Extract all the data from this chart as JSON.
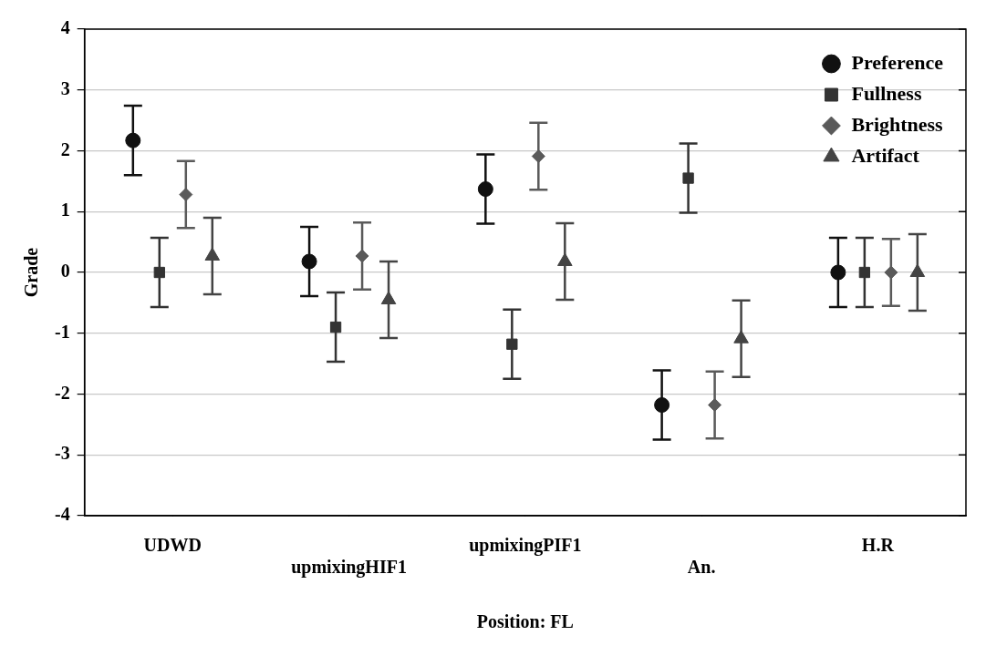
{
  "chart_data": {
    "type": "scatter",
    "xlabel": "Position: FL",
    "ylabel": "Grade",
    "categories": [
      "UDWD",
      "upmixingHIF1",
      "upmixingPIF1",
      "An.",
      "H.R"
    ],
    "ylim": [
      -4,
      4
    ],
    "yticks": [
      -4,
      -3,
      -2,
      -1,
      0,
      1,
      2,
      3,
      4
    ],
    "grid": "y",
    "legend": "top right",
    "series": [
      {
        "name": "Preference",
        "color": "#111111",
        "marker": "circle",
        "values": [
          2.17,
          0.18,
          1.37,
          -2.18,
          0
        ],
        "errors": [
          0.57,
          0.57,
          0.57,
          0.57,
          0.57
        ]
      },
      {
        "name": "Fullness",
        "color": "#333333",
        "marker": "square",
        "values": [
          0,
          -0.9,
          -1.18,
          1.55,
          0
        ],
        "errors": [
          0.57,
          0.57,
          0.57,
          0.57,
          0.57
        ]
      },
      {
        "name": "Brightness",
        "color": "#5a5a5a",
        "marker": "diamond",
        "values": [
          1.28,
          0.27,
          1.91,
          -2.18,
          0
        ],
        "errors": [
          0.55,
          0.55,
          0.55,
          0.55,
          0.55
        ]
      },
      {
        "name": "Artifact",
        "color": "#444444",
        "marker": "triangle",
        "values": [
          0.27,
          -0.45,
          0.18,
          -1.09,
          0
        ],
        "errors": [
          0.63,
          0.63,
          0.63,
          0.63,
          0.63
        ]
      }
    ]
  }
}
